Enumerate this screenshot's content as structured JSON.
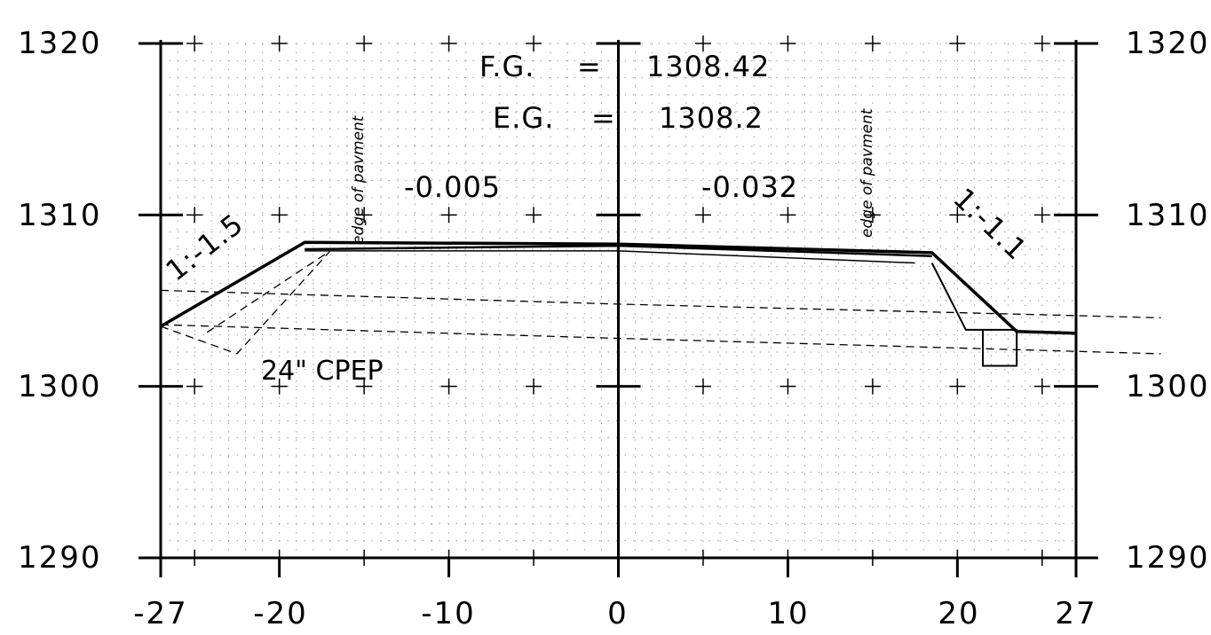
{
  "y_ticks": [
    "1320",
    "1310",
    "1300",
    "1290"
  ],
  "x_ticks": [
    "-27",
    "-20",
    "-10",
    "0",
    "10",
    "20",
    "27"
  ],
  "fg": {
    "label": "F.G.",
    "eq": "=",
    "value": "1308.42"
  },
  "eg": {
    "label": "E.G.",
    "eq": "=",
    "value": "1308.2"
  },
  "slope_left": "-0.005",
  "slope_right": "-0.032",
  "edge_left": "edge of pavment",
  "edge_right": "edge of pavment",
  "side_slope_left": "1:-1.5",
  "side_slope_right": "1:-1.1",
  "pipe_label": "24\" CPEP",
  "chart_data": {
    "type": "line",
    "x_ticks": [
      -27,
      -20,
      -10,
      0,
      10,
      20,
      27
    ],
    "y_ticks": [
      1290,
      1300,
      1310,
      1320
    ],
    "xlim": [
      -27,
      27
    ],
    "ylim": [
      1290,
      1320
    ],
    "grid": true,
    "series": [
      {
        "x": [
          -27,
          -18.5,
          0,
          18.5,
          23.5,
          27
        ],
        "y": [
          1303.5,
          1308.4,
          1308.3,
          1307.8,
          1303.2,
          1303.1
        ]
      },
      {
        "x": [
          -18.5,
          0,
          18.5
        ],
        "y": [
          1308.0,
          1308.2,
          1307.6
        ]
      },
      {
        "x": [
          -18.5,
          0,
          17.5
        ],
        "y": [
          1307.9,
          1307.9,
          1307.2
        ]
      },
      {
        "x": [
          18.5,
          20.5,
          23.5,
          23.5,
          21.5,
          21.5,
          23.5
        ],
        "y": [
          1307.2,
          1303.3,
          1303.3,
          1301.2,
          1301.2,
          1303.3,
          1303.3
        ]
      },
      {
        "x": [
          -27,
          0,
          32
        ],
        "y": [
          1305.6,
          1304.8,
          1304.0
        ]
      },
      {
        "x": [
          -27,
          0,
          32
        ],
        "y": [
          1303.6,
          1302.8,
          1301.9
        ]
      },
      {
        "x": [
          -27,
          -22.5,
          -17,
          -24.5
        ],
        "y": [
          1303.5,
          1301.9,
          1307.9,
          1303.0
        ]
      }
    ]
  }
}
